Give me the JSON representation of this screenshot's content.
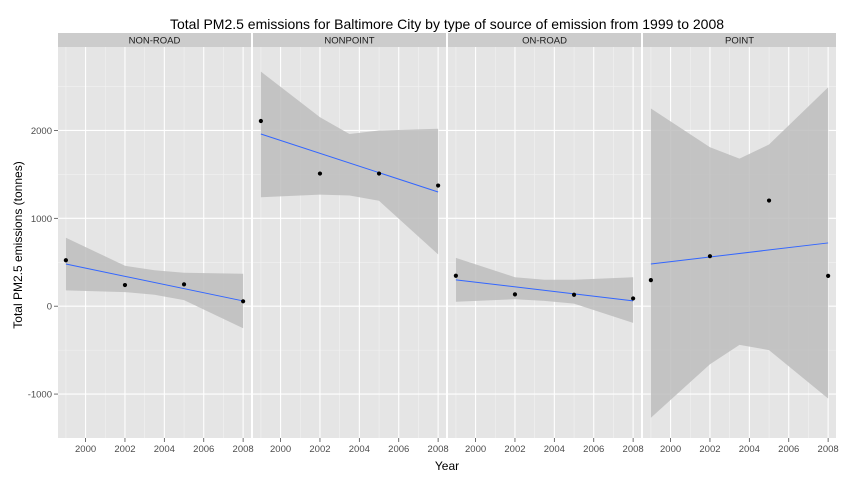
{
  "chart_data": {
    "type": "scatter",
    "title": "Total PM2.5 emissions for Baltimore City by type of source of emission from 1999 to 2008",
    "xlabel": "Year",
    "ylabel": "Total PM2.5 emissions (tonnes)",
    "xlim": [
      1998.6,
      2008.4
    ],
    "ylim": [
      -1500,
      2950
    ],
    "x_ticks": [
      2000,
      2002,
      2004,
      2006,
      2008
    ],
    "x_tick_labels": [
      "2000",
      "2002",
      "2004",
      "2006",
      "2008"
    ],
    "y_ticks": [
      -1000,
      0,
      1000,
      2000
    ],
    "y_tick_labels": [
      "-1000",
      "0",
      "1000",
      "2000"
    ],
    "grid": true,
    "colors": {
      "panel_bg": "#e5e5e5",
      "strip_bg": "#cccccc",
      "grid_major": "#ffffff",
      "grid_minor": "#f2f2f2",
      "point": "#000000",
      "fit_line": "#3366ff",
      "ribbon": "#bdbdbd"
    },
    "facets": [
      {
        "label": "NON-ROAD",
        "points": {
          "x": [
            1999,
            2002,
            2005,
            2008
          ],
          "y": [
            522.94,
            240.85,
            248.93,
            55.82
          ]
        },
        "fit": {
          "x": [
            1999,
            2008
          ],
          "y": [
            480,
            60
          ]
        },
        "band": {
          "x": [
            1999,
            2002,
            2003.5,
            2005,
            2008
          ],
          "lower": [
            180,
            160,
            130,
            70,
            -250
          ],
          "upper": [
            780,
            460,
            410,
            380,
            370
          ]
        }
      },
      {
        "label": "NONPOINT",
        "points": {
          "x": [
            1999,
            2002,
            2005,
            2008
          ],
          "y": [
            2107.63,
            1509.5,
            1509.5,
            1373.21
          ]
        },
        "fit": {
          "x": [
            1999,
            2008
          ],
          "y": [
            1960,
            1300
          ]
        },
        "band": {
          "x": [
            1999,
            2002,
            2003.5,
            2005,
            2008
          ],
          "lower": [
            1240,
            1270,
            1260,
            1200,
            590
          ]
        },
        "band_upper": [
          2670,
          2150,
          1960,
          2000,
          2020
        ]
      },
      {
        "label": "ON-ROAD",
        "points": {
          "x": [
            1999,
            2002,
            2005,
            2008
          ],
          "y": [
            346.82,
            134.31,
            130.43,
            88.28
          ]
        },
        "fit": {
          "x": [
            1999,
            2008
          ],
          "y": [
            300,
            60
          ]
        },
        "band": {
          "x": [
            1999,
            2002,
            2003.5,
            2005,
            2008
          ],
          "lower": [
            50,
            80,
            60,
            30,
            -190
          ],
          "upper": [
            550,
            330,
            300,
            300,
            330
          ]
        }
      },
      {
        "label": "POINT",
        "points": {
          "x": [
            1999,
            2002,
            2005,
            2008
          ],
          "y": [
            296.8,
            569.26,
            1202.49,
            344.98
          ]
        },
        "fit": {
          "x": [
            1999,
            2008
          ],
          "y": [
            480,
            720
          ]
        },
        "band": {
          "x": [
            1999,
            2002,
            2003.5,
            2005,
            2008
          ],
          "lower": [
            -1270,
            -660,
            -440,
            -500,
            -1050
          ],
          "upper": [
            2250,
            1810,
            1680,
            1840,
            2490
          ]
        }
      }
    ]
  }
}
